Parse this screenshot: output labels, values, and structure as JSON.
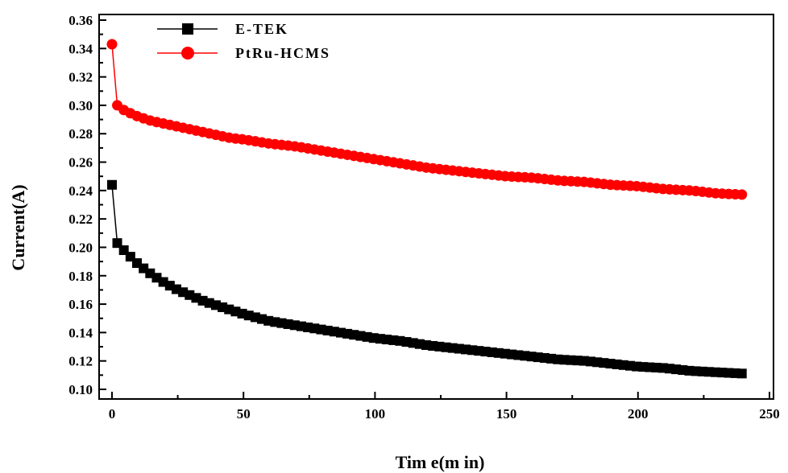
{
  "chart_data": {
    "type": "line",
    "xlabel": "Tim e(m in)",
    "ylabel": "Current(A)",
    "xlim": [
      0,
      250
    ],
    "ylim": [
      0.1,
      0.36
    ],
    "x_ticks": [
      "0",
      "50",
      "100",
      "150",
      "200",
      "250"
    ],
    "y_ticks": [
      "0.10",
      "0.12",
      "0.14",
      "0.16",
      "0.18",
      "0.20",
      "0.22",
      "0.24",
      "0.26",
      "0.28",
      "0.30",
      "0.32",
      "0.34",
      "0.36"
    ],
    "grid": false,
    "legend_position": "top-left",
    "series": [
      {
        "name": "E-TEK",
        "color": "#000000",
        "marker": "square",
        "x": [
          0,
          2,
          5,
          10,
          15,
          20,
          25,
          30,
          35,
          40,
          45,
          50,
          60,
          70,
          80,
          90,
          100,
          110,
          120,
          130,
          140,
          150,
          160,
          170,
          180,
          190,
          200,
          210,
          220,
          230,
          241
        ],
        "y": [
          0.244,
          0.203,
          0.197,
          0.188,
          0.181,
          0.175,
          0.17,
          0.166,
          0.162,
          0.159,
          0.156,
          0.153,
          0.148,
          0.145,
          0.142,
          0.139,
          0.136,
          0.134,
          0.131,
          0.129,
          0.127,
          0.125,
          0.123,
          0.121,
          0.12,
          0.118,
          0.116,
          0.115,
          0.113,
          0.112,
          0.111
        ]
      },
      {
        "name": "PtRu-HCMS",
        "color": "#ff0000",
        "marker": "circle",
        "x": [
          0,
          2,
          5,
          10,
          15,
          20,
          25,
          30,
          35,
          40,
          45,
          50,
          60,
          70,
          80,
          90,
          100,
          110,
          120,
          130,
          140,
          150,
          160,
          170,
          180,
          190,
          200,
          210,
          220,
          230,
          241
        ],
        "y": [
          0.343,
          0.3,
          0.296,
          0.292,
          0.289,
          0.287,
          0.285,
          0.283,
          0.281,
          0.279,
          0.277,
          0.276,
          0.273,
          0.271,
          0.268,
          0.265,
          0.262,
          0.259,
          0.256,
          0.254,
          0.252,
          0.25,
          0.249,
          0.247,
          0.246,
          0.244,
          0.243,
          0.241,
          0.24,
          0.238,
          0.237
        ]
      }
    ]
  }
}
